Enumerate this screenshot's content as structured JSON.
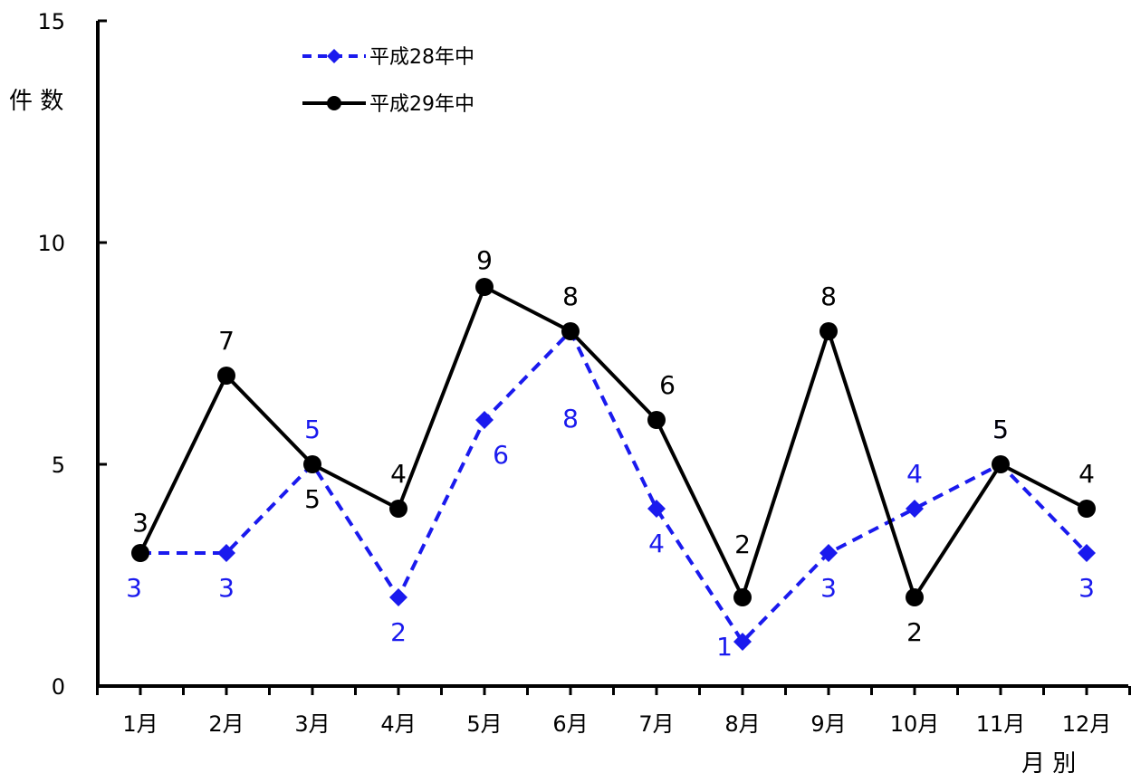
{
  "chart_data": {
    "type": "line",
    "categories": [
      "1月",
      "2月",
      "3月",
      "4月",
      "5月",
      "6月",
      "7月",
      "8月",
      "9月",
      "10月",
      "11月",
      "12月"
    ],
    "ylabel": "件 数",
    "xlabel": "月 別",
    "ylim": [
      0,
      15
    ],
    "yticks": [
      "0",
      "5",
      "10",
      "15"
    ],
    "grid": false,
    "legend_position": "top-left",
    "series": [
      {
        "name": "平成28年中",
        "values": [
          3,
          3,
          5,
          2,
          6,
          8,
          4,
          1,
          3,
          4,
          5,
          3
        ],
        "labels": [
          "3",
          "3",
          "5",
          "2",
          "6",
          "8",
          "4",
          "1",
          "3",
          "4",
          "5",
          "3"
        ],
        "color": "#1a1aee",
        "style": "dashed",
        "marker": "diamond"
      },
      {
        "name": "平成29年中",
        "values": [
          3,
          7,
          5,
          4,
          9,
          8,
          6,
          2,
          8,
          2,
          5,
          4
        ],
        "labels": [
          "3",
          "7",
          "5",
          "4",
          "9",
          "8",
          "6",
          "2",
          "8",
          "2",
          "5",
          "4"
        ],
        "color": "#000000",
        "style": "solid",
        "marker": "circle"
      }
    ]
  }
}
